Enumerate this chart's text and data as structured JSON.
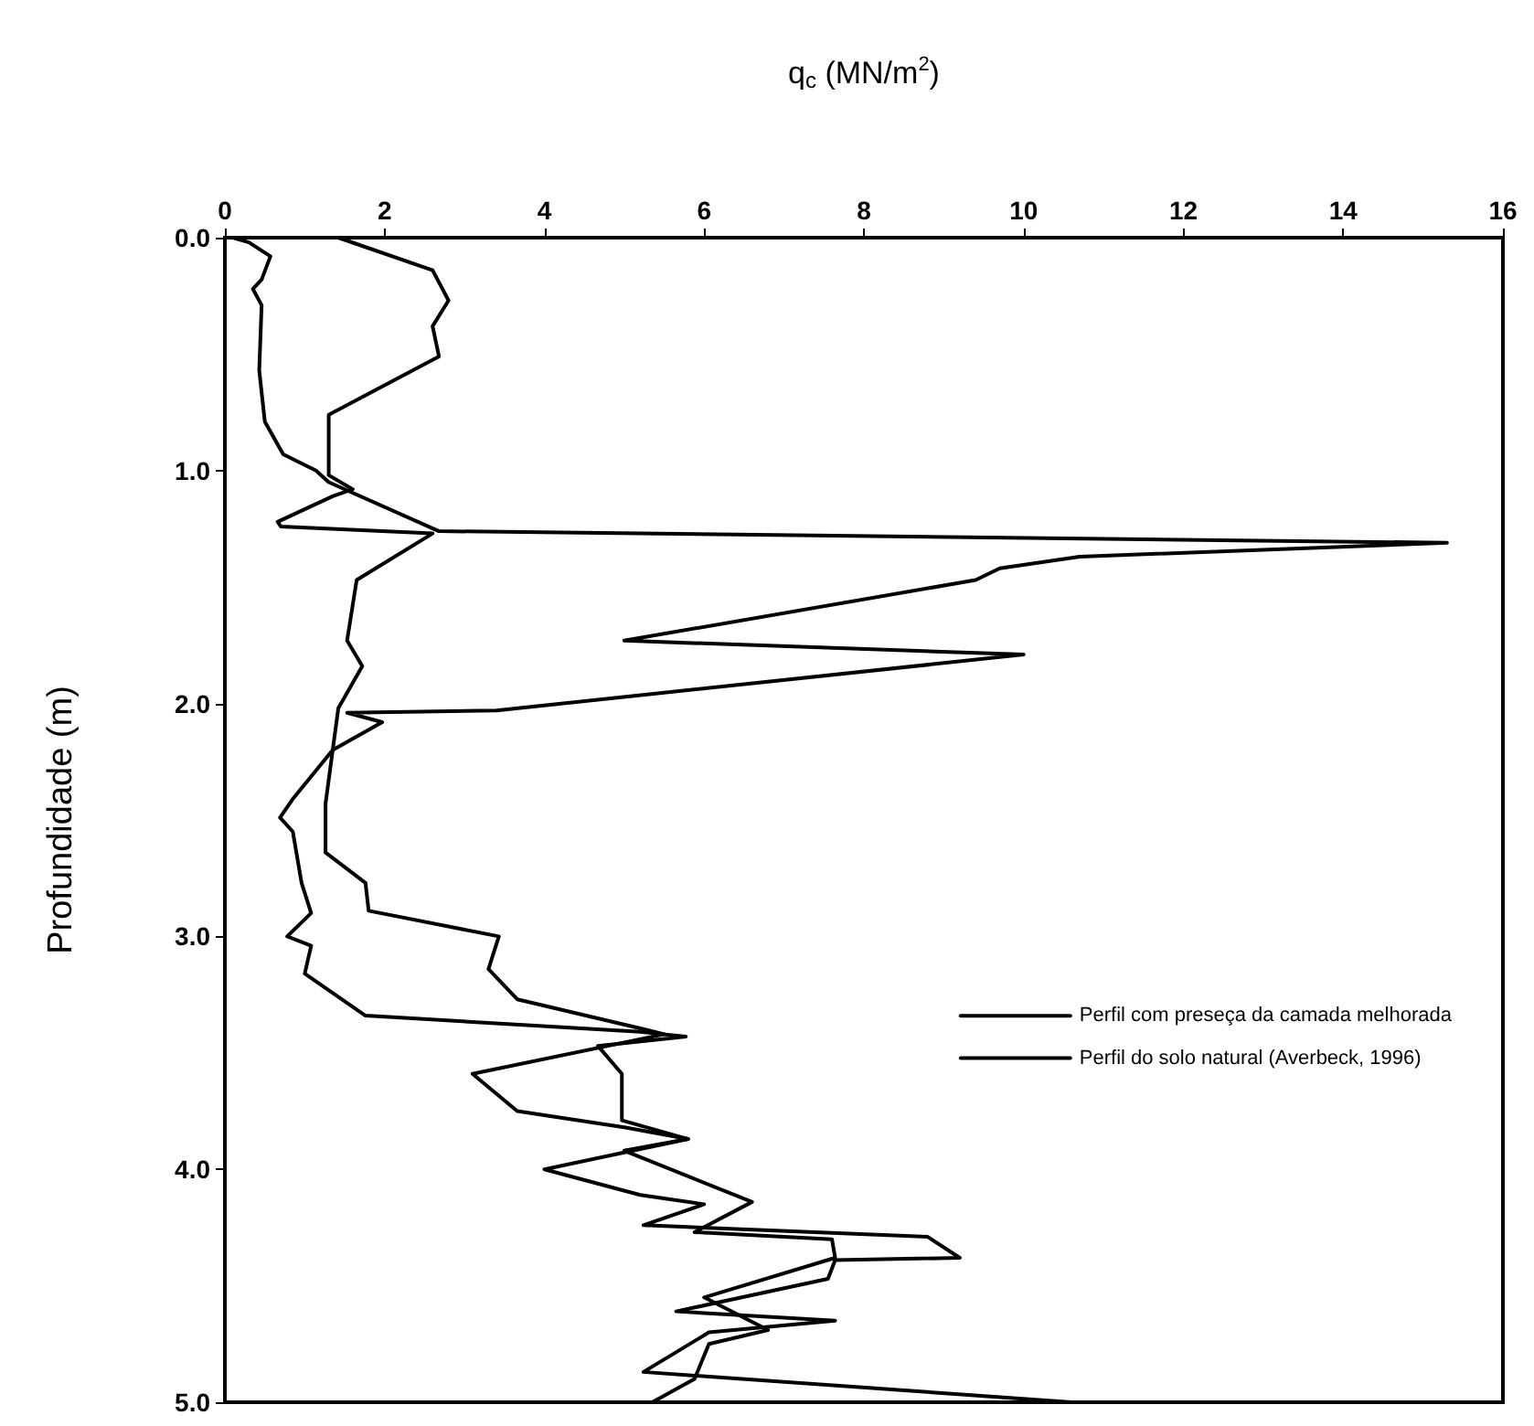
{
  "chart_data": {
    "type": "line",
    "xlabel": "q$_{c}$ (MN/m$^{2}$)",
    "ylabel": "Profundidade (m)",
    "xlim": [
      0,
      16
    ],
    "xticks": [
      0,
      2,
      4,
      6,
      8,
      10,
      12,
      14,
      16
    ],
    "ylim": [
      5,
      0
    ],
    "yticks": [
      {
        "value": 0,
        "label": "0.0"
      },
      {
        "value": 1,
        "label": "1.0"
      },
      {
        "value": 2,
        "label": "2.0"
      },
      {
        "value": 3,
        "label": "3.0"
      },
      {
        "value": 4,
        "label": "4.0"
      },
      {
        "value": 5,
        "label": "5.0"
      }
    ],
    "series": [
      {
        "name": "Perfil com preseça da camada melhorada",
        "color": "#000000",
        "x": [
          0.1,
          0.3,
          0.57,
          0.46,
          0.35,
          0.46,
          0.43,
          0.5,
          0.73,
          1.14,
          1.3,
          2.68,
          15.3,
          10.7,
          9.7,
          9.4,
          5.0,
          10.0,
          3.4,
          1.53,
          1.97,
          1.35,
          0.85,
          0.69,
          0.85,
          0.96,
          1.08,
          0.78,
          1.08,
          1.0,
          1.76,
          5.2,
          5.77,
          4.67,
          4.97,
          4.97,
          5.8,
          5.0,
          6.6,
          5.88,
          7.6,
          7.64,
          6.0,
          6.8,
          6.06,
          5.88,
          5.35
        ],
        "values": [
          0.0,
          0.02,
          0.08,
          0.18,
          0.22,
          0.29,
          0.57,
          0.79,
          0.93,
          1.0,
          1.05,
          1.26,
          1.31,
          1.37,
          1.42,
          1.47,
          1.73,
          1.79,
          2.03,
          2.04,
          2.08,
          2.2,
          2.41,
          2.49,
          2.55,
          2.77,
          2.9,
          3.0,
          3.04,
          3.16,
          3.34,
          3.41,
          3.43,
          3.47,
          3.59,
          3.79,
          3.87,
          3.92,
          4.14,
          4.27,
          4.3,
          4.38,
          4.55,
          4.69,
          4.75,
          4.9,
          5.0
        ]
      },
      {
        "name": "Perfil do solo natural (Averbeck, 1996)",
        "color": "#000000",
        "x": [
          1.42,
          2.6,
          2.8,
          2.6,
          2.68,
          1.3,
          1.3,
          1.6,
          1.35,
          0.66,
          0.7,
          2.6,
          1.65,
          1.53,
          1.72,
          1.42,
          1.35,
          1.26,
          1.26,
          1.76,
          1.8,
          3.43,
          3.3,
          3.66,
          5.26,
          5.5,
          3.1,
          3.66,
          5.0,
          5.8,
          4.0,
          5.2,
          6.0,
          5.24,
          8.8,
          9.2,
          7.64,
          7.55,
          5.65,
          7.64,
          6.06,
          5.24,
          10.6
        ],
        "values": [
          0.0,
          0.14,
          0.27,
          0.38,
          0.51,
          0.76,
          1.02,
          1.08,
          1.11,
          1.22,
          1.24,
          1.27,
          1.47,
          1.73,
          1.84,
          2.02,
          2.2,
          2.43,
          2.64,
          2.77,
          2.89,
          3.0,
          3.14,
          3.27,
          3.4,
          3.42,
          3.59,
          3.75,
          3.82,
          3.87,
          4.0,
          4.11,
          4.15,
          4.24,
          4.29,
          4.38,
          4.39,
          4.47,
          4.61,
          4.65,
          4.7,
          4.87,
          5.0
        ]
      }
    ],
    "legend": "right",
    "marker": "none",
    "line_style": "solid",
    "grid": false
  }
}
